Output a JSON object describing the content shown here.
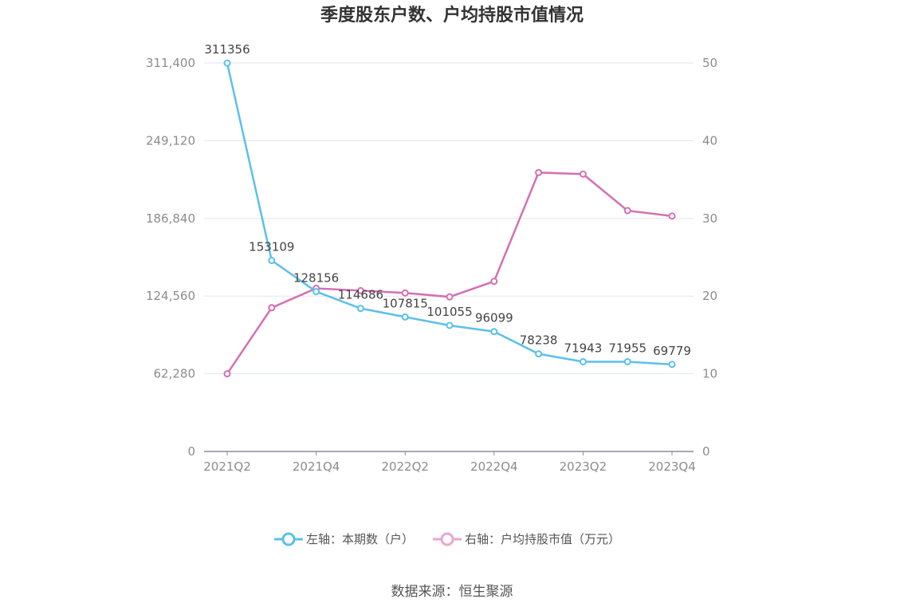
{
  "chart_data": {
    "type": "line",
    "title": "季度股东户数、户均持股市值情况",
    "categories": [
      "2021Q2",
      "2021Q3",
      "2021Q4",
      "2022Q1",
      "2022Q2",
      "2022Q3",
      "2022Q4",
      "2023Q1",
      "2023Q2",
      "2023Q3",
      "2023Q4"
    ],
    "x_tick_labels": [
      "2021Q2",
      "2021Q4",
      "2022Q2",
      "2022Q4",
      "2023Q2",
      "2023Q4"
    ],
    "left_axis": {
      "ylim": [
        0,
        311400
      ],
      "ticks": [
        "0",
        "62,280",
        "124,560",
        "186,840",
        "249,120",
        "311,400"
      ]
    },
    "right_axis": {
      "ylim": [
        0,
        50
      ],
      "ticks": [
        "0",
        "10",
        "20",
        "30",
        "40",
        "50"
      ]
    },
    "series": [
      {
        "name": "左轴：本期数（户）",
        "axis": "left",
        "color": "#5bc0eb",
        "values": [
          311356,
          153109,
          128156,
          114686,
          107815,
          101055,
          96099,
          78238,
          71943,
          71955,
          69779
        ],
        "labels": [
          "311356",
          "153109",
          "128156",
          "114686",
          "107815",
          "101055",
          "96099",
          "78238",
          "71943",
          "71955",
          "69779"
        ]
      },
      {
        "name": "右轴：户均持股市值（万元）",
        "axis": "right",
        "color": "#d470b4",
        "values": [
          10.0,
          18.5,
          21.0,
          20.7,
          20.4,
          19.9,
          21.9,
          35.9,
          35.7,
          31.0,
          30.3
        ]
      }
    ],
    "grid": true,
    "legend_position": "bottom-center"
  },
  "source": "数据来源：恒生聚源"
}
